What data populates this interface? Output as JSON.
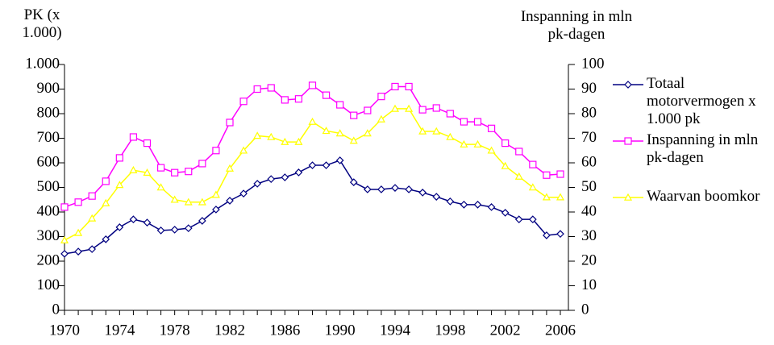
{
  "chart_data": {
    "type": "line",
    "y_label": "PK (x 1.000)",
    "y2_label": "Inspanning in mln pk-dagen",
    "x": [
      1970,
      1971,
      1972,
      1973,
      1974,
      1975,
      1976,
      1977,
      1978,
      1979,
      1980,
      1981,
      1982,
      1983,
      1984,
      1985,
      1986,
      1987,
      1988,
      1989,
      1990,
      1991,
      1992,
      1993,
      1994,
      1995,
      1996,
      1997,
      1998,
      1999,
      2000,
      2001,
      2002,
      2003,
      2004,
      2005,
      2006
    ],
    "xlim": [
      1970,
      2006
    ],
    "xticks": [
      1970,
      1974,
      1978,
      1982,
      1986,
      1990,
      1994,
      1998,
      2002,
      2006
    ],
    "ylim": [
      0,
      1000
    ],
    "yticks": [
      0,
      100,
      200,
      300,
      400,
      500,
      600,
      700,
      800,
      900,
      {
        "value": 1000,
        "label": "1.000"
      }
    ],
    "y2lim": [
      0,
      100
    ],
    "y2ticks": [
      0,
      10,
      20,
      30,
      40,
      50,
      60,
      70,
      80,
      90,
      100
    ],
    "legend": "right",
    "series": [
      {
        "name": "Totaal motorvermogen x 1.000 pk",
        "color": "#000080",
        "marker": "diamond",
        "values": [
          230,
          239,
          249,
          289,
          338,
          370,
          357,
          325,
          328,
          334,
          364,
          410,
          446,
          475,
          515,
          534,
          541,
          561,
          590,
          590,
          610,
          521,
          492,
          492,
          498,
          492,
          479,
          462,
          443,
          430,
          430,
          420,
          397,
          370,
          370,
          305,
          311
        ]
      },
      {
        "name": "Inspanning in mln pk-dagen",
        "color": "#ff00ff",
        "marker": "square",
        "axis": "y2",
        "values": [
          42,
          44,
          46.5,
          52.5,
          62,
          70.5,
          68,
          58,
          56,
          56.5,
          59.7,
          65,
          76.4,
          85,
          90,
          90.5,
          85.6,
          86,
          91.5,
          87.5,
          83.6,
          79.3,
          81.3,
          87,
          91,
          91,
          81.6,
          82.3,
          80,
          76.7,
          76.7,
          74,
          68,
          64.6,
          59.3,
          55,
          55.4
        ]
      },
      {
        "name": "Waarvan boomkor",
        "color": "#ffff00",
        "marker": "triangle",
        "axis": "y2",
        "values": [
          28.5,
          31.5,
          37.4,
          43.6,
          51,
          57,
          56,
          50,
          45,
          44,
          44,
          47,
          57.7,
          65,
          71,
          70.5,
          68.5,
          68.5,
          76.7,
          73,
          72,
          69,
          72,
          77.7,
          82,
          82,
          72.8,
          72.8,
          70.5,
          67.5,
          67.5,
          65,
          58.7,
          54.4,
          50,
          46,
          46
        ]
      }
    ]
  }
}
